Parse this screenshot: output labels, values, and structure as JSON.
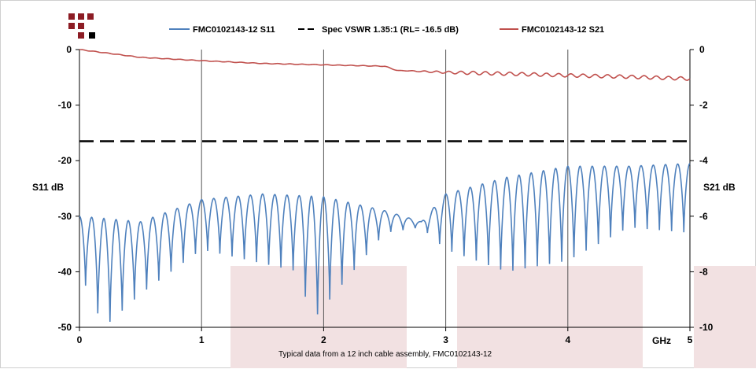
{
  "chart_data": {
    "type": "line",
    "xlabel": "GHz",
    "ylabel_left": "S11 dB",
    "ylabel_right": "S21 dB",
    "caption": "Typical data from a 12 inch cable assembly, FMC0102143-12",
    "xlim": [
      0,
      5
    ],
    "ylim_left": [
      -50,
      0
    ],
    "ylim_right": [
      -10,
      0
    ],
    "x_ticks": [
      0,
      1,
      2,
      3,
      4,
      5
    ],
    "y_left_ticks": [
      0,
      -10,
      -20,
      -30,
      -40,
      -50
    ],
    "y_right_ticks": [
      0,
      -2,
      -4,
      -6,
      -8,
      -10
    ],
    "grid": "vertical",
    "legend_position": "top",
    "series": [
      {
        "name": "FMC0102143-12 S11",
        "color": "#4f81bd",
        "axis": "left",
        "ripple_frequency_ghz": 0.1,
        "peaks": [
          {
            "x": 0,
            "y": -30
          },
          {
            "x": 0.5,
            "y": -31
          },
          {
            "x": 1.0,
            "y": -27
          },
          {
            "x": 1.5,
            "y": -26
          },
          {
            "x": 2.0,
            "y": -26.5
          },
          {
            "x": 2.5,
            "y": -29
          },
          {
            "x": 2.8,
            "y": -31
          },
          {
            "x": 3.0,
            "y": -26
          },
          {
            "x": 3.5,
            "y": -23
          },
          {
            "x": 4.0,
            "y": -21
          },
          {
            "x": 4.5,
            "y": -21
          },
          {
            "x": 5.0,
            "y": -20.5
          }
        ],
        "troughs": [
          {
            "x": 0,
            "y": -40
          },
          {
            "x": 0.2,
            "y": -50
          },
          {
            "x": 0.5,
            "y": -44
          },
          {
            "x": 1.0,
            "y": -36
          },
          {
            "x": 1.8,
            "y": -40
          },
          {
            "x": 1.9,
            "y": -49
          },
          {
            "x": 2.5,
            "y": -33
          },
          {
            "x": 2.8,
            "y": -32
          },
          {
            "x": 3.0,
            "y": -36
          },
          {
            "x": 3.5,
            "y": -40
          },
          {
            "x": 4.0,
            "y": -38
          },
          {
            "x": 4.5,
            "y": -32
          },
          {
            "x": 5.0,
            "y": -33
          }
        ]
      },
      {
        "name": "Spec VSWR 1.35:1 (RL= -16.5 dB)",
        "color": "#000000",
        "axis": "left",
        "style": "dashed",
        "x": [
          0,
          5
        ],
        "y": [
          -16.5,
          -16.5
        ]
      },
      {
        "name": "FMC0102143-12 S21",
        "color": "#c0504d",
        "axis": "right",
        "x": [
          0,
          0.5,
          1.0,
          1.5,
          2.0,
          2.5,
          2.6,
          3.0,
          3.5,
          4.0,
          4.5,
          5.0
        ],
        "y": [
          0,
          -0.28,
          -0.4,
          -0.5,
          -0.55,
          -0.6,
          -0.75,
          -0.82,
          -0.87,
          -0.93,
          -0.98,
          -1.05
        ]
      }
    ]
  },
  "ui": {
    "legend_labels": [
      "FMC0102143-12 S11",
      "Spec VSWR 1.35:1 (RL= -16.5 dB)",
      "FMC0102143-12 S21"
    ],
    "logo": "logo-icon",
    "background_blocks": "faint-pink-rectangles"
  }
}
